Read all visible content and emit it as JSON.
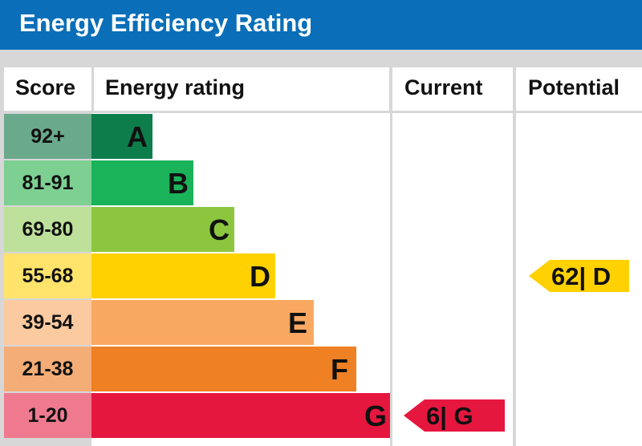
{
  "header": {
    "title": "Energy Efficiency Rating"
  },
  "columns": {
    "score": "Score",
    "rating": "Energy rating",
    "current": "Current",
    "potential": "Potential"
  },
  "chart_data": {
    "type": "bar",
    "bands": [
      {
        "letter": "A",
        "score": "92+",
        "color": "#0d7d4c",
        "score_color": "#6aa98b"
      },
      {
        "letter": "B",
        "score": "81-91",
        "color": "#1bb35a",
        "score_color": "#7dcf92"
      },
      {
        "letter": "C",
        "score": "69-80",
        "color": "#8cc63f",
        "score_color": "#bde19a"
      },
      {
        "letter": "D",
        "score": "55-68",
        "color": "#ffd100",
        "score_color": "#ffe36b"
      },
      {
        "letter": "E",
        "score": "39-54",
        "color": "#f9a862",
        "score_color": "#fbcaa0"
      },
      {
        "letter": "F",
        "score": "21-38",
        "color": "#ef8023",
        "score_color": "#f4ad77"
      },
      {
        "letter": "G",
        "score": "1-20",
        "color": "#e5173f",
        "score_color": "#ef7a8f"
      }
    ],
    "current": {
      "value": 6,
      "band": "G",
      "label": "6| G",
      "color": "#e5173f"
    },
    "potential": {
      "value": 62,
      "band": "D",
      "label": "62| D",
      "color": "#ffd100"
    }
  }
}
